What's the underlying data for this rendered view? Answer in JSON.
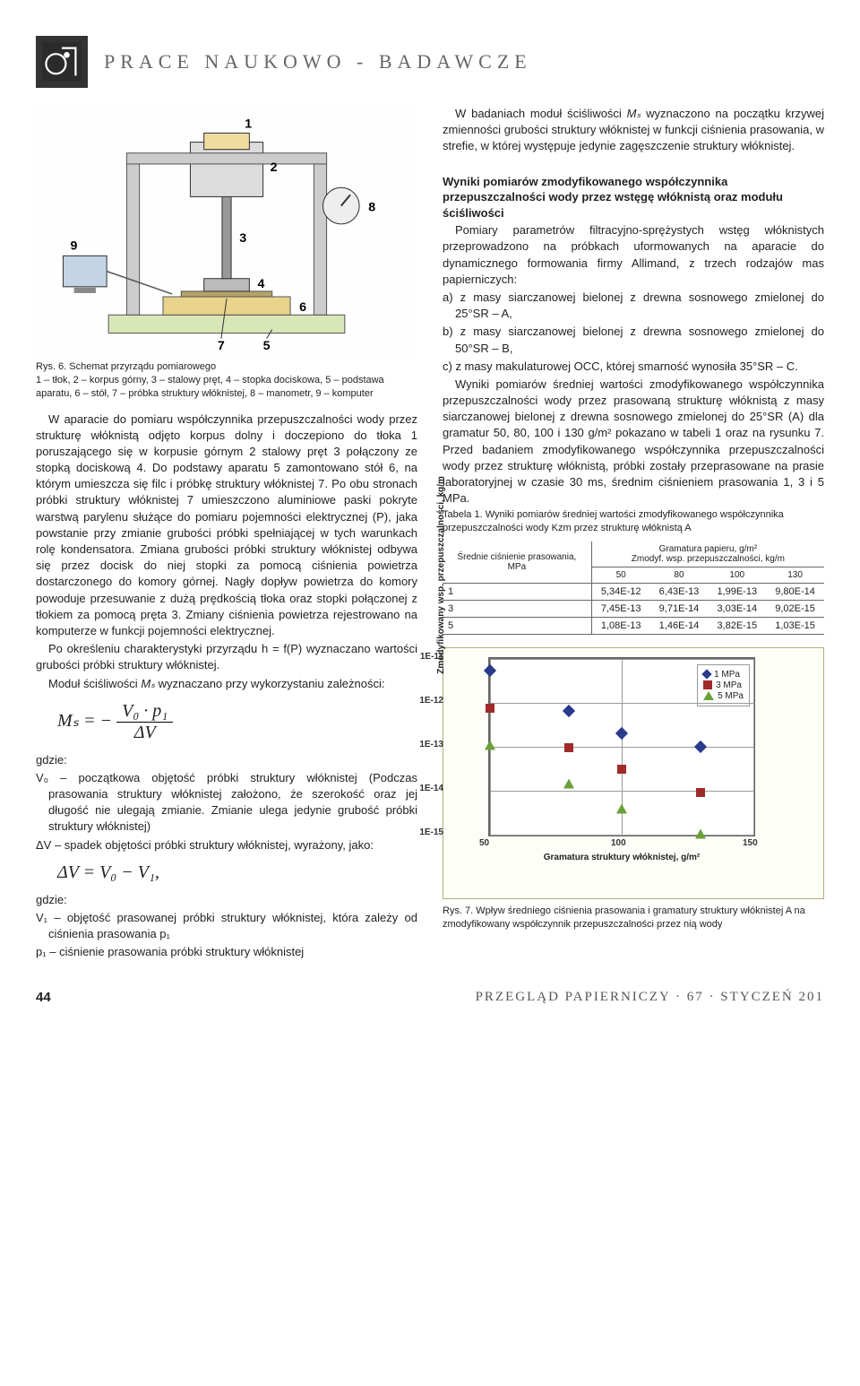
{
  "header": {
    "section_title": "PRACE  NAUKOWO - BADAWCZE"
  },
  "fig6": {
    "caption": "Rys. 6. Schemat przyrządu pomiarowego\n1 – tłok, 2 – korpus górny, 3 – stalowy pręt, 4 – stopka dociskowa, 5 – podstawa aparatu, 6 – stół, 7 – próbka struktury włóknistej, 8 – manometr, 9 – komputer",
    "labels": [
      "1",
      "2",
      "3",
      "4",
      "5",
      "6",
      "7",
      "8",
      "9"
    ]
  },
  "left_para1": "W aparacie do pomiaru współczynnika przepuszczalności wody przez strukturę włóknistą odjęto korpus dolny i doczepiono do tłoka 1 poruszającego się w korpusie górnym 2 stalowy pręt 3 połączony ze stopką dociskową 4. Do podstawy aparatu 5 zamontowano stół 6, na którym umieszcza się filc i próbkę struktury włóknistej 7. Po obu stronach próbki struktury włóknistej 7 umieszczono aluminiowe paski pokryte warstwą parylenu służące do pomiaru pojemności elektrycznej (P), jaka powstanie przy zmianie grubości próbki spełniającej w tych warunkach rolę kondensatora. Zmiana grubości próbki struktury włóknistej odbywa się przez docisk do niej stopki za pomocą ciśnienia powietrza dostarczonego do komory górnej. Nagły dopływ powietrza do komory powoduje przesuwanie z dużą prędkością tłoka oraz stopki połączonej z tłokiem za pomocą pręta 3. Zmiany ciśnienia powietrza rejestrowano na komputerze w funkcji pojemności elektrycznej.",
  "left_para2": "Po określeniu charakterystyki przyrządu h = f(P) wyznaczano wartości grubości próbki struktury włóknistej.",
  "left_para3_a": "Moduł ściśliwości ",
  "left_para3_b": " wyznaczano przy wykorzystaniu zależności:",
  "Ms_symbol": "Mₛ",
  "formula1": {
    "lhs": "Mₛ = −",
    "num": "V₀ · p₁",
    "den": "ΔV"
  },
  "gdzie": "gdzie:",
  "def_V0": "V₀ – początkowa objętość próbki struktury włóknistej (Podczas prasowania struktury włóknistej założono, że szerokość oraz jej długość nie ulegają zmianie. Zmianie ulega jedynie grubość próbki struktury włóknistej)",
  "def_dV": "ΔV – spadek objętości próbki struktury włóknistej, wyrażony, jako:",
  "formula2": "ΔV = V₀ − V₁,",
  "def_V1": "V₁ – objętość prasowanej próbki struktury włóknistej, która zależy od ciśnienia prasowania p₁",
  "def_p1": "p₁ – ciśnienie prasowania próbki struktury włóknistej",
  "right_para1_a": "W badaniach moduł ściśliwości ",
  "right_para1_b": " wyznaczono na początku krzywej zmienności grubości struktury włóknistej w funkcji ciśnienia prasowania, w strefie, w której występuje jedynie zagęszczenie struktury włóknistej.",
  "section_heading": "Wyniki pomiarów zmodyfikowanego współczynnika przepuszczalności wody przez wstęgę włóknistą oraz modułu ściśliwości",
  "right_para2": "Pomiary parametrów filtracyjno-sprężystych wstęg włóknistych przeprowadzono na próbkach uformowanych na aparacie do dynamicznego formowania firmy Allimand, z trzech rodzajów mas papierniczych:",
  "list_a": "a) z masy siarczanowej bielonej z drewna sosnowego zmielonej do 25°SR – A,",
  "list_b": "b) z masy siarczanowej bielonej z drewna sosnowego zmielonej do 50°SR – B,",
  "list_c": "c) z masy makulaturowej OCC, której smarność wynosiła 35°SR – C.",
  "right_para3": "Wyniki pomiarów średniej wartości zmodyfikowanego współczynnika przepuszczalności wody przez prasowaną strukturę włóknistą z masy siarczanowej bielonej z drewna sosnowego zmielonej do 25°SR (A) dla gramatur 50, 80, 100 i 130 g/m² pokazano w tabeli 1 oraz na rysunku 7. Przed badaniem zmodyfikowanego współczynnika przepuszczalności wody przez strukturę włóknistą, próbki zostały przeprasowane na prasie laboratoryjnej w czasie 30 ms, średnim ciśnieniem prasowania 1, 3 i 5 MPa.",
  "table1": {
    "caption": "Tabela 1. Wyniki pomiarów średniej wartości zmodyfikowanego współczynnika przepuszczalności wody Kzm przez strukturę włóknistą A",
    "col1_header_l1": "Średnie ciśnienie prasowania,",
    "col1_header_l2": "MPa",
    "col2_header_l1": "Gramatura papieru, g/m²",
    "col2_header_l2": "Zmodyf. wsp. przepuszczalności, kg/m",
    "gram_cols": [
      "50",
      "80",
      "100",
      "130"
    ],
    "rows": [
      {
        "p": "1",
        "v": [
          "5,34E-12",
          "6,43E-13",
          "1,99E-13",
          "9,80E-14"
        ]
      },
      {
        "p": "3",
        "v": [
          "7,45E-13",
          "9,71E-14",
          "3,03E-14",
          "9,02E-15"
        ]
      },
      {
        "p": "5",
        "v": [
          "1,08E-13",
          "1,46E-14",
          "3,82E-15",
          "1,03E-15"
        ]
      }
    ]
  },
  "fig7": {
    "caption": "Rys. 7. Wpływ średniego ciśnienia prasowania i gramatury struktury włóknistej A na zmodyfikowany współczynnik przepuszczalności przez nią wody",
    "xlabel": "Gramatura struktury włóknistej, g/m²",
    "ylabel": "Zmodyfikowany wsp. przepuszczalności, kg/m",
    "xlim": [
      50,
      150
    ],
    "ylim_log_exp": [
      -15,
      -11
    ],
    "xticks": [
      "50",
      "100",
      "150"
    ],
    "yticks": [
      "1E-15",
      "1E-14",
      "1E-13",
      "1E-12",
      "1E-11"
    ],
    "series": [
      {
        "name": "1 MPa",
        "marker": "diamond",
        "color": "#2a3a8c",
        "points": [
          [
            50,
            5.34e-12
          ],
          [
            80,
            6.43e-13
          ],
          [
            100,
            1.99e-13
          ],
          [
            130,
            9.8e-14
          ]
        ]
      },
      {
        "name": "3 MPa",
        "marker": "square",
        "color": "#a02a2a",
        "points": [
          [
            50,
            7.45e-13
          ],
          [
            80,
            9.71e-14
          ],
          [
            100,
            3.03e-14
          ],
          [
            130,
            9.02e-15
          ]
        ]
      },
      {
        "name": "5 MPa",
        "marker": "triangle",
        "color": "#6aa03a",
        "points": [
          [
            50,
            1.08e-13
          ],
          [
            80,
            1.46e-14
          ],
          [
            100,
            3.82e-15
          ],
          [
            130,
            1.03e-15
          ]
        ]
      }
    ]
  },
  "footer": {
    "page": "44",
    "journal": "PRZEGLĄD  PAPIERNICZY · 67 · STYCZEŃ  201"
  }
}
